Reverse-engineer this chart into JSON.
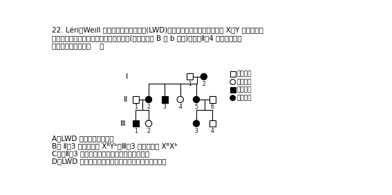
{
  "title_line1": "22. Léri－Weill 软骨骨生成障碍综合征(LWD)是一种遗传病，致病基因位于 X、Y 染色体的同",
  "title_line2": "源区段。下图是某家族关于该病的系谱图(相关基因用 B 和 b 表示)，已知Ⅱ－4 是纯合子。下",
  "title_line3": "列说法不正确的是（    ）",
  "optA": "A．LWD 是一种显性遗传病",
  "optB": "B． Ⅱ－3 的基因型是 XᴮYᵇ，Ⅲ－3 的基因型是 XᴮXᵇ",
  "optC": "C．若Ⅱ－3 与表型正常的女性结婚，建议生男孩",
  "optD": "D．LWD 患者可通过基因治疗完全治愈而不遗传给后代",
  "leg_normal_male": "正常男性",
  "leg_normal_female": "正常女性",
  "leg_affected_male": "患病男性",
  "leg_affected_female": "患病女性",
  "bg_color": "#ffffff"
}
